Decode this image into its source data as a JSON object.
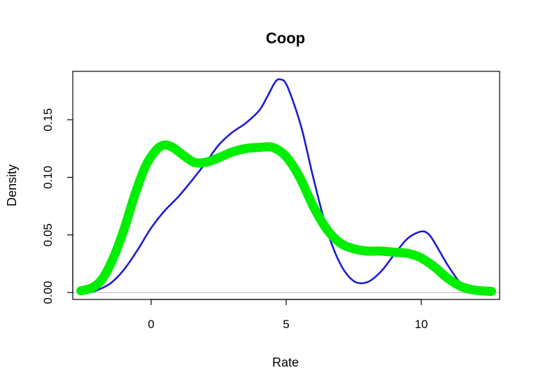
{
  "chart_data": {
    "type": "line",
    "title": "Coop",
    "xlabel": "Rate",
    "ylabel": "Density",
    "xlim": [
      -2.9,
      12.9
    ],
    "ylim": [
      -0.006,
      0.192
    ],
    "xticks": [
      0,
      5,
      10
    ],
    "xtick_labels": [
      "0",
      "5",
      "10"
    ],
    "yticks": [
      0.0,
      0.05,
      0.1,
      0.15
    ],
    "ytick_labels": [
      "0.00",
      "0.05",
      "0.10",
      "0.15"
    ],
    "baseline": 0,
    "grid": false,
    "legend": "none",
    "series": [
      {
        "color": "#1c1cd0",
        "line": "thin",
        "x": [
          -2.3,
          -2.0,
          -1.5,
          -1.0,
          -0.5,
          0.0,
          0.5,
          1.0,
          1.5,
          2.0,
          2.5,
          3.0,
          3.5,
          4.0,
          4.3,
          4.6,
          4.8,
          5.0,
          5.3,
          5.6,
          6.0,
          6.5,
          7.0,
          7.5,
          8.0,
          8.5,
          9.0,
          9.5,
          10.0,
          10.3,
          10.6,
          11.0,
          11.5,
          12.0
        ],
        "y": [
          0.0,
          0.002,
          0.008,
          0.02,
          0.037,
          0.056,
          0.071,
          0.083,
          0.097,
          0.112,
          0.128,
          0.139,
          0.147,
          0.158,
          0.17,
          0.183,
          0.185,
          0.181,
          0.163,
          0.14,
          0.1,
          0.055,
          0.025,
          0.01,
          0.009,
          0.018,
          0.033,
          0.047,
          0.053,
          0.05,
          0.039,
          0.023,
          0.007,
          0.001
        ]
      },
      {
        "color": "#00ee00",
        "line": "thick",
        "x": [
          -2.6,
          -2.2,
          -1.8,
          -1.4,
          -1.0,
          -0.6,
          -0.2,
          0.2,
          0.5,
          0.8,
          1.2,
          1.6,
          2.0,
          2.5,
          3.0,
          3.5,
          4.0,
          4.5,
          5.0,
          5.5,
          6.0,
          6.5,
          7.0,
          7.5,
          8.0,
          8.5,
          9.0,
          9.5,
          10.0,
          10.5,
          11.0,
          11.5,
          12.0,
          12.6
        ],
        "y": [
          0.0015,
          0.004,
          0.012,
          0.03,
          0.055,
          0.085,
          0.11,
          0.124,
          0.128,
          0.126,
          0.119,
          0.113,
          0.113,
          0.117,
          0.122,
          0.125,
          0.126,
          0.126,
          0.118,
          0.1,
          0.075,
          0.055,
          0.043,
          0.038,
          0.036,
          0.036,
          0.035,
          0.034,
          0.03,
          0.022,
          0.012,
          0.005,
          0.002,
          0.001
        ]
      }
    ]
  }
}
